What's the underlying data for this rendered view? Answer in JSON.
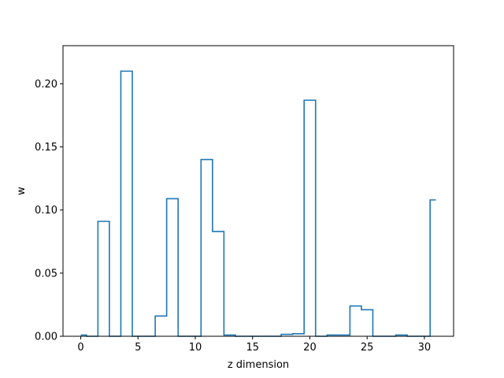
{
  "chart_data": {
    "type": "step",
    "xlabel": "z dimension",
    "ylabel": "w",
    "xlim": [
      -1.55,
      32.55
    ],
    "ylim": [
      0.0,
      0.2302
    ],
    "xticks": [
      0,
      5,
      10,
      15,
      20,
      25,
      30
    ],
    "yticks": [
      0.0,
      0.05,
      0.1,
      0.15,
      0.2
    ],
    "xtick_labels": [
      "0",
      "5",
      "10",
      "15",
      "20",
      "25",
      "30"
    ],
    "ytick_labels": [
      "0.00",
      "0.05",
      "0.10",
      "0.15",
      "0.20"
    ],
    "grid": false,
    "line_color": "#1f77b4",
    "x": [
      0,
      1,
      2,
      3,
      4,
      5,
      6,
      7,
      8,
      9,
      10,
      11,
      12,
      13,
      14,
      15,
      16,
      17,
      18,
      19,
      20,
      21,
      22,
      23,
      24,
      25,
      26,
      27,
      28,
      29,
      30,
      31
    ],
    "values": [
      0.001,
      0.0,
      0.091,
      0.0,
      0.21,
      0.0,
      0.0,
      0.016,
      0.109,
      0.0,
      0.0,
      0.14,
      0.083,
      0.001,
      0.0,
      0.0,
      0.0,
      0.0,
      0.0015,
      0.002,
      0.187,
      0.0,
      0.001,
      0.001,
      0.024,
      0.021,
      0.0,
      0.0,
      0.001,
      0.0,
      0.0,
      0.108
    ]
  }
}
